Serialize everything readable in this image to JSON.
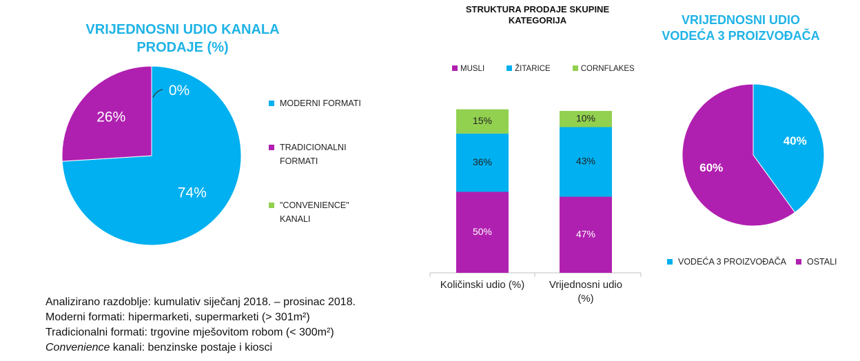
{
  "chart_data": [
    {
      "type": "pie",
      "title": "VRIJEDNOSNI UDIO KANALA PRODAJE (%)",
      "slices": [
        {
          "label": "MODERNI FORMATI",
          "value": 74,
          "display": "74%",
          "color": "#00b0f0"
        },
        {
          "label": "TRADICIONALNI FORMATI",
          "value": 26,
          "display": "26%",
          "color": "#b020b0"
        },
        {
          "label": "\"CONVENIENCE\" KANALI",
          "value": 0,
          "display": "0%",
          "color": "#92d050"
        }
      ],
      "legend_position": "right"
    },
    {
      "type": "bar",
      "stacked": true,
      "title": "STRUKTURA PRODAJE SKUPINE KATEGORIJA",
      "categories": [
        "Količinski udio (%)",
        "Vrijednosni udio (%)"
      ],
      "series": [
        {
          "name": "MUSLI",
          "values": [
            50,
            47
          ],
          "labels": [
            "50%",
            "47%"
          ],
          "color": "#b020b0"
        },
        {
          "name": "ŽITARICE",
          "values": [
            36,
            43
          ],
          "labels": [
            "36%",
            "43%"
          ],
          "color": "#00b0f0"
        },
        {
          "name": "CORNFLAKES",
          "values": [
            15,
            10
          ],
          "labels": [
            "15%",
            "10%"
          ],
          "color": "#92d050"
        }
      ],
      "legend_position": "top",
      "grid": false
    },
    {
      "type": "pie",
      "title": "VRIJEDNOSNI UDIO VODEĆA 3 PROIZVOĐAČA",
      "slices": [
        {
          "label": "VODEĆA 3 PROIZVOĐAČA",
          "value": 40,
          "display": "40%",
          "color": "#00b0f0"
        },
        {
          "label": "OSTALI",
          "value": 60,
          "display": "60%",
          "color": "#b020b0"
        }
      ],
      "legend_position": "bottom"
    }
  ],
  "notes": {
    "line1": "Analizirano razdoblje: kumulativ siječanj 2018. – prosinac 2018.",
    "line2": "Moderni formati: hipermarketi, supermarketi (> 301m²)",
    "line3": "Tradicionalni formati: trgovine mješovitom robom (< 300m²)",
    "line4_em": "Convenience",
    "line4_rest": " kanali: benzinske postaje i kiosci"
  }
}
